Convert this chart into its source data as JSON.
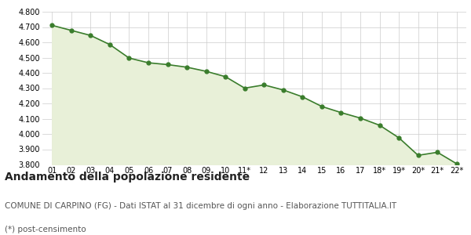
{
  "x_labels": [
    "01",
    "02",
    "03",
    "04",
    "05",
    "06",
    "07",
    "08",
    "09",
    "10",
    "11*",
    "12",
    "13",
    "14",
    "15",
    "16",
    "17",
    "18*",
    "19*",
    "20*",
    "21*",
    "22*"
  ],
  "values": [
    4711,
    4678,
    4645,
    4585,
    4497,
    4466,
    4454,
    4437,
    4410,
    4375,
    4300,
    4321,
    4288,
    4243,
    4180,
    4140,
    4104,
    4057,
    3975,
    3860,
    3880,
    3805
  ],
  "line_color": "#3a7d2c",
  "fill_color": "#e8f0d8",
  "marker_color": "#3a7d2c",
  "background_color": "#ffffff",
  "grid_color": "#cccccc",
  "ylim": [
    3800,
    4800
  ],
  "yticks": [
    3800,
    3900,
    4000,
    4100,
    4200,
    4300,
    4400,
    4500,
    4600,
    4700,
    4800
  ],
  "title": "Andamento della popolazione residente",
  "subtitle": "COMUNE DI CARPINO (FG) - Dati ISTAT al 31 dicembre di ogni anno - Elaborazione TUTTITALIA.IT",
  "footnote": "(*) post-censimento",
  "title_fontsize": 10,
  "subtitle_fontsize": 7.5,
  "footnote_fontsize": 7.5
}
